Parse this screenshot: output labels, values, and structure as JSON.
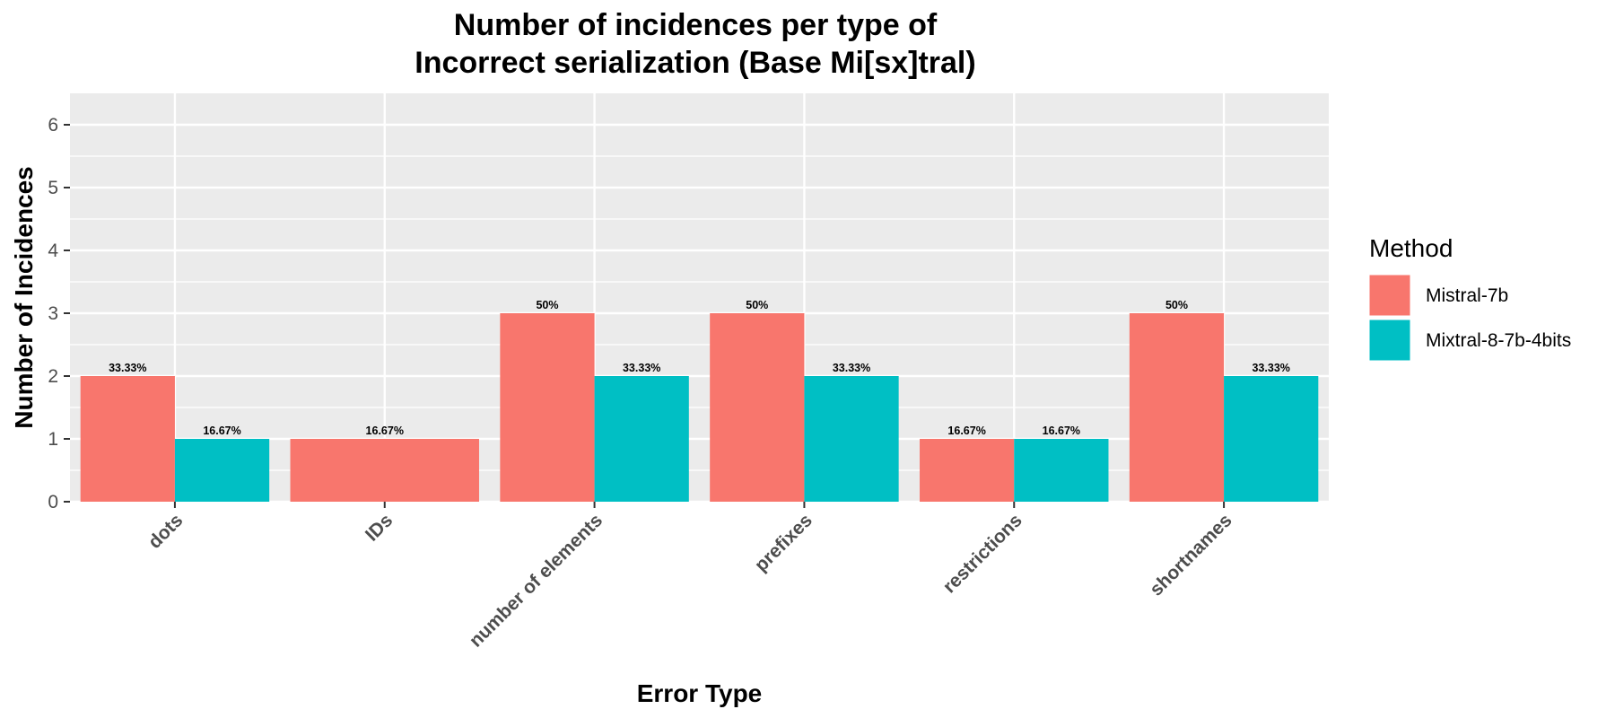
{
  "chart_data": {
    "type": "bar",
    "title": "Number of incidences per type of\nIncorrect serialization (Base Mi[sx]tral)",
    "xlabel": "Error Type",
    "ylabel": "Number of Incidences",
    "ylim": [
      0,
      6.5
    ],
    "yticks": [
      0,
      1,
      2,
      3,
      4,
      5,
      6
    ],
    "categories": [
      "dots",
      "IDs",
      "number of elements",
      "prefixes",
      "restrictions",
      "shortnames"
    ],
    "legend_title": "Method",
    "legend_position": "right",
    "grid": true,
    "series": [
      {
        "name": "Mistral-7b",
        "color": "#F8766D",
        "values": [
          2,
          1,
          3,
          3,
          1,
          3
        ],
        "labels": [
          "33.33%",
          "16.67%",
          "50%",
          "50%",
          "16.67%",
          "50%"
        ]
      },
      {
        "name": "Mixtral-8-7b-4bits",
        "color": "#00BFC4",
        "values": [
          1,
          null,
          2,
          2,
          1,
          2
        ],
        "labels": [
          "16.67%",
          null,
          "33.33%",
          "33.33%",
          "16.67%",
          "33.33%"
        ]
      }
    ]
  }
}
